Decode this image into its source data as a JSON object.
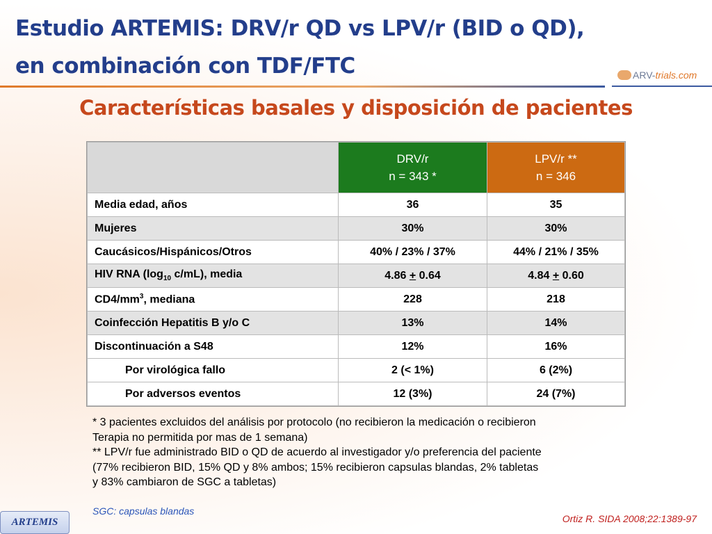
{
  "header": {
    "title_lines": [
      "Estudio ARTEMIS: DRV/r QD vs LPV/r (BID o QD),",
      "en combinación con TDF/FTC"
    ],
    "logo": [
      "ARV-",
      "trials",
      ".com"
    ],
    "subtitle": "Características basales y disposición de pacientes"
  },
  "table": {
    "columns": [
      {
        "name": "DRV/r",
        "n": "n = 343 *"
      },
      {
        "name": "LPV/r **",
        "n": "n = 346"
      }
    ],
    "rows": [
      {
        "label": "Media edad, años",
        "values": [
          "36",
          "35"
        ]
      },
      {
        "label": "Mujeres",
        "values": [
          "30%",
          "30%"
        ]
      },
      {
        "label": "Caucásicos/Hispánicos/Otros",
        "values": [
          "40% / 23% / 37%",
          "44% / 21% / 35%"
        ]
      },
      {
        "label": [
          "HIV RNA (log",
          "10",
          " c/mL), media"
        ],
        "values": [
          [
            "4.86 ",
            "+",
            " 0.64"
          ],
          [
            "4.84 ",
            "+",
            " 0.60"
          ]
        ]
      },
      {
        "label": [
          "CD4/mm",
          "3",
          ", mediana"
        ],
        "values": [
          "228",
          "218"
        ]
      },
      {
        "label": "Coinfección Hepatitis B y/o C",
        "values": [
          "13%",
          "14%"
        ]
      },
      {
        "label": "Discontinuación a S48",
        "values": [
          "12%",
          "16%"
        ]
      },
      {
        "label": "Por virológica fallo",
        "values": [
          "2 (< 1%)",
          "6 (2%)"
        ]
      },
      {
        "label": "Por adversos eventos",
        "values": [
          "12 (3%)",
          "24 (7%)"
        ]
      }
    ]
  },
  "footnotes": [
    "* 3 pacientes excluidos del análisis por protocolo (no recibieron la medicación o recibieron",
    "Terapia no permitida por mas de 1 semana)",
    "** LPV/r fue administrado BID o QD de acuerdo al investigador y/o preferencia del paciente",
    "(77% recibieron BID, 15% QD y 8% ambos; 15% recibieron capsulas blandas, 2% tabletas",
    "y 83% cambiaron de SGC a tabletas)"
  ],
  "glossary": "SGC: capsulas blandas",
  "badge": "ARTEMIS",
  "citation": "Ortiz R. SIDA 2008;22:1389-97"
}
